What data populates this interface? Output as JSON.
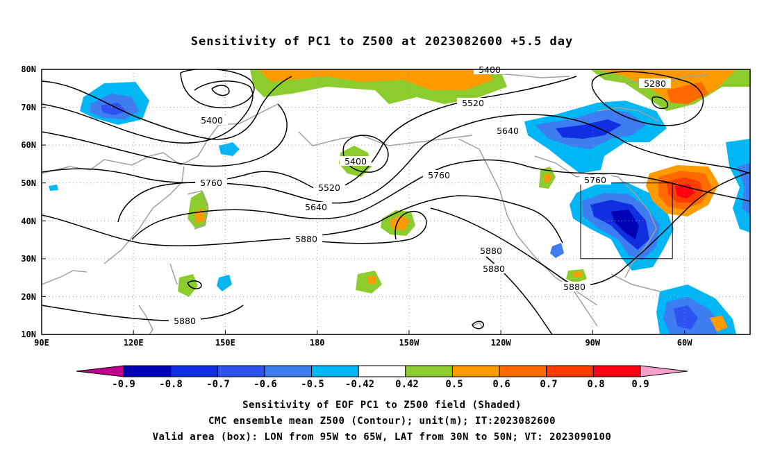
{
  "title": "Sensitivity of PC1 to Z500 at 2023082600 +5.5 day",
  "lat_labels": [
    "80N",
    "70N",
    "60N",
    "50N",
    "40N",
    "30N",
    "20N",
    "10N"
  ],
  "lon_labels": [
    "90E",
    "120E",
    "150E",
    "180",
    "150W",
    "120W",
    "90W",
    "60W"
  ],
  "contour_labels": [
    "5400",
    "5280",
    "5520",
    "5400",
    "5640",
    "5400",
    "5760",
    "5520",
    "5760",
    "5640",
    "5880",
    "5760",
    "5880",
    "5880",
    "5880",
    "5880"
  ],
  "colorbar": {
    "labels": [
      "-0.9",
      "-0.8",
      "-0.7",
      "-0.6",
      "-0.5",
      "-0.42",
      "0.42",
      "0.5",
      "0.6",
      "0.7",
      "0.8",
      "0.9"
    ],
    "colors": [
      "#c0008c",
      "#0000b4",
      "#0f2fe0",
      "#2c52f0",
      "#3e7cf2",
      "#00b6f5",
      "#ffffff",
      "#8ccc2c",
      "#ff9a00",
      "#ff6a00",
      "#ff3c00",
      "#ff0010",
      "#f5a0c8"
    ]
  },
  "footer": {
    "line1": "Sensitivity of EOF PC1 to Z500 field (Shaded)",
    "line2": "CMC ensemble mean Z500 (Contour); unit(m); IT:2023082600",
    "line3": "Valid area (box): LON from 95W to 65W, LAT from 30N to 50N; VT: 2023090100"
  }
}
